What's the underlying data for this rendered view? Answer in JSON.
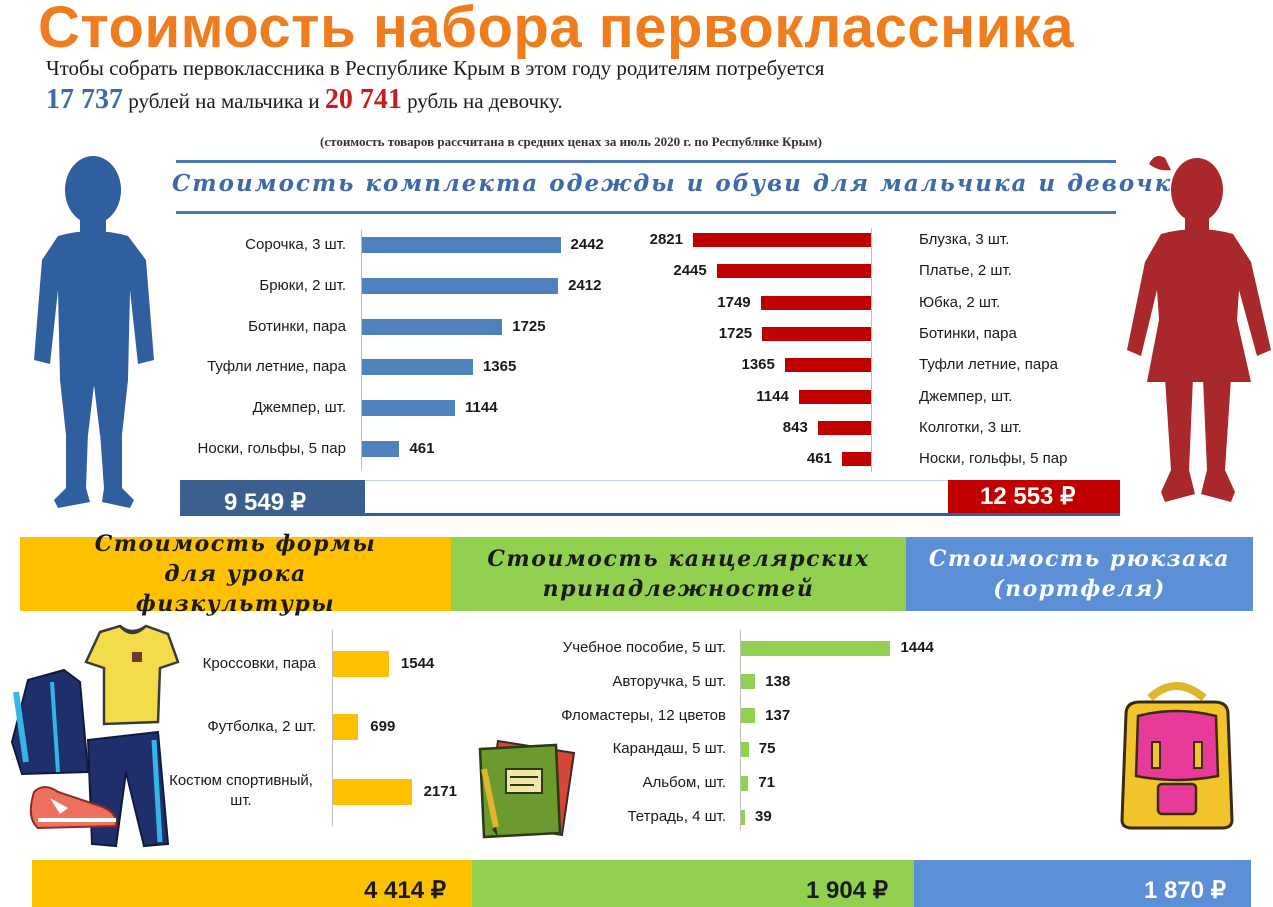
{
  "header": {
    "title": "Стоимость набора первоклассника",
    "intro_line1": "Чтобы собрать первоклассника в Республике Крым в этом году родителям потребуется",
    "boy_total": "17 737",
    "intro_mid": " рублей на мальчика и ",
    "girl_total": "20 741",
    "intro_end": " рубль на девочку.",
    "note": "(стоимость товаров рассчитана в средних ценах за июль 2020 г. по  Республике Крым)"
  },
  "clothes_section": {
    "title": "Стоимость комплекта одежды и обуви для мальчика и девочки",
    "boy_total": "9 549 ₽",
    "girl_total": "12 553 ₽"
  },
  "bands": {
    "pe": "Стоимость формы для урока физкультуры",
    "stationery": "Стоимость канцелярских принадлежностей",
    "backpack": "Стоимость рюкзака (портфеля)"
  },
  "bottom_totals": {
    "pe": "4 414 ₽",
    "stationery": "1 904 ₽",
    "backpack": "1 870 ₽"
  },
  "colors": {
    "title_orange": "#ef7d1e",
    "boy_blue": "#4f81bd",
    "boy_dark": "#3b5f8f",
    "girl_red": "#c00000",
    "pe_yellow": "#ffc000",
    "stationery_green": "#92d050",
    "backpack_blue": "#5b8fd6"
  },
  "chart_data": [
    {
      "type": "bar",
      "categories": [
        "Сорочка, 3 шт.",
        "Брюки, 2 шт.",
        "Ботинки, пара",
        "Туфли летние, пара",
        "Джемпер, шт.",
        "Носки,  гольфы, 5 пар"
      ],
      "values": [
        2442,
        2412,
        1725,
        1365,
        1144,
        461
      ]
    },
    {
      "type": "bar",
      "categories": [
        "Блузка, 3 шт.",
        "Платье, 2 шт.",
        "Юбка, 2 шт.",
        "Ботинки, пара",
        "Туфли летние, пара",
        "Джемпер, шт.",
        "Колготки, 3 шт.",
        "Носки, гольфы, 5 пар"
      ],
      "values": [
        2821,
        2445,
        1749,
        1725,
        1365,
        1144,
        843,
        461
      ]
    },
    {
      "type": "bar",
      "categories": [
        "Кроссовки, пара",
        "Футболка, 2 шт.",
        "Костюм спортивный, шт."
      ],
      "values": [
        1544,
        699,
        2171
      ]
    },
    {
      "type": "bar",
      "categories": [
        "Учебное пособие, 5 шт.",
        "Авторучка, 5 шт.",
        "Фломастеры,  12 цветов",
        "Карандаш, 5 шт.",
        "Альбом, шт.",
        "Тетрадь, 4 шт."
      ],
      "values": [
        1444,
        138,
        137,
        75,
        71,
        39
      ]
    }
  ]
}
